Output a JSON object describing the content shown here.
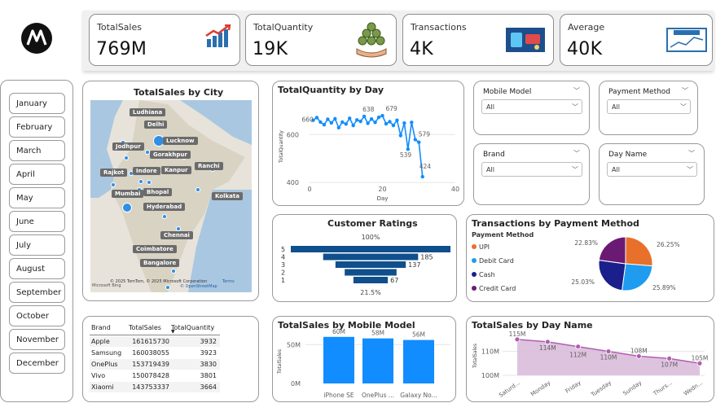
{
  "kpis": [
    {
      "label": "TotalSales",
      "value": "769M",
      "icon": "bar-chart-growth-icon"
    },
    {
      "label": "TotalQuantity",
      "value": "19K",
      "icon": "money-stack-icon"
    },
    {
      "label": "Transactions",
      "value": "4K",
      "icon": "digital-payment-icon"
    },
    {
      "label": "Average",
      "value": "40K",
      "icon": "average-board-icon"
    }
  ],
  "months": [
    "January",
    "February",
    "March",
    "April",
    "May",
    "June",
    "July",
    "August",
    "September",
    "October",
    "November",
    "December"
  ],
  "map": {
    "title": "TotalSales by City",
    "cities": [
      "Ludhiana",
      "Delhi",
      "Lucknow",
      "Jodhpur",
      "Gorakhpur",
      "Rajkot",
      "Indore",
      "Kanpur",
      "Ranchi",
      "Mumbai",
      "Bhopal",
      "Kolkata",
      "Hyderabad",
      "Chennai",
      "Coimbatore",
      "Bangalore"
    ],
    "attribution": "© 2025 TomTom, © 2025 Microsoft Corporation",
    "terms": "Terms",
    "osm": "© OpenStreetMap",
    "brand": "Microsoft Bing"
  },
  "qty_chart": {
    "title": "TotalQuantity by Day",
    "ylabel": "TotalQuantity",
    "xlabel": "Day",
    "yticks": [
      "600",
      "400"
    ],
    "xticks": [
      "0",
      "20",
      "40"
    ],
    "labels": [
      "660",
      "679",
      "638",
      "579",
      "539",
      "424"
    ]
  },
  "slicers": {
    "mobile_model": {
      "label": "Mobile Model",
      "value": "All"
    },
    "payment_method": {
      "label": "Payment Method",
      "value": "All"
    },
    "brand": {
      "label": "Brand",
      "value": "All"
    },
    "day_name": {
      "label": "Day Name",
      "value": "All"
    }
  },
  "ratings": {
    "title": "Customer Ratings",
    "top": "100%",
    "bottom": "21.5%",
    "levels": [
      "5",
      "4",
      "3",
      "2",
      "1"
    ],
    "value_labels": [
      "185",
      "137",
      "67"
    ]
  },
  "payment_chart": {
    "title": "Transactions by Payment Method",
    "legend_title": "Payment Method",
    "items": [
      {
        "name": "UPI",
        "color": "#e8702a",
        "pct": "26.25%"
      },
      {
        "name": "Debit Card",
        "color": "#1f9bf0",
        "pct": "25.89%"
      },
      {
        "name": "Cash",
        "color": "#1a1f8c",
        "pct": "25.03%"
      },
      {
        "name": "Credit Card",
        "color": "#6b1a74",
        "pct": "22.83%"
      }
    ]
  },
  "table": {
    "headers": [
      "Brand",
      "TotalSales",
      "TotalQuantity"
    ],
    "rows": [
      [
        "Apple",
        "161615730",
        "3932"
      ],
      [
        "Samsung",
        "160038055",
        "3923"
      ],
      [
        "OnePlus",
        "153719439",
        "3830"
      ],
      [
        "Vivo",
        "150078428",
        "3801"
      ],
      [
        "Xiaomi",
        "143753337",
        "3664"
      ]
    ]
  },
  "model_chart": {
    "title": "TotalSales by Mobile Model",
    "ylabel": "TotalSales",
    "yticks": [
      "50M",
      "0M"
    ],
    "labels": [
      "60M",
      "58M",
      "56M"
    ],
    "categories": [
      "iPhone SE",
      "OnePlus ...",
      "Galaxy No..."
    ]
  },
  "dayname_chart": {
    "title": "TotalSales by Day Name",
    "ylabel": "TotalSales",
    "yticks": [
      "110M",
      "100M"
    ],
    "labels": [
      "115M",
      "114M",
      "112M",
      "110M",
      "108M",
      "107M",
      "105M"
    ],
    "categories": [
      "Saturd...",
      "Monday",
      "Friday",
      "Tuesday",
      "Sunday",
      "Thurs...",
      "Wedn..."
    ]
  },
  "chart_data": [
    {
      "type": "line",
      "title": "TotalQuantity by Day",
      "xlabel": "Day",
      "ylabel": "TotalQuantity",
      "ylim": [
        380,
        720
      ],
      "xlim": [
        0,
        40
      ],
      "x": [
        1,
        2,
        3,
        4,
        5,
        6,
        7,
        8,
        9,
        10,
        11,
        12,
        13,
        14,
        15,
        16,
        17,
        18,
        19,
        20,
        21,
        22,
        23,
        24,
        25,
        26,
        27,
        28,
        29,
        30,
        31
      ],
      "values": [
        660,
        671,
        652,
        641,
        664,
        649,
        666,
        629,
        652,
        644,
        668,
        638,
        661,
        655,
        676,
        647,
        665,
        651,
        672,
        679,
        645,
        654,
        638,
        660,
        596,
        648,
        539,
        651,
        579,
        568,
        424
      ]
    },
    {
      "type": "bar",
      "title": "Customer Ratings",
      "categories": [
        "5",
        "4",
        "3",
        "2",
        "1"
      ],
      "values": [
        311,
        185,
        137,
        101,
        67
      ]
    },
    {
      "type": "pie",
      "title": "Transactions by Payment Method",
      "categories": [
        "UPI",
        "Debit Card",
        "Cash",
        "Credit Card"
      ],
      "values": [
        26.25,
        25.89,
        25.03,
        22.83
      ]
    },
    {
      "type": "bar",
      "title": "TotalSales by Mobile Model",
      "ylabel": "TotalSales",
      "categories": [
        "iPhone SE",
        "OnePlus ...",
        "Galaxy No..."
      ],
      "values": [
        60,
        58,
        56
      ],
      "ylim": [
        0,
        65
      ]
    },
    {
      "type": "area",
      "title": "TotalSales by Day Name",
      "ylabel": "TotalSales",
      "categories": [
        "Saturd...",
        "Monday",
        "Friday",
        "Tuesday",
        "Sunday",
        "Thurs...",
        "Wedn..."
      ],
      "values": [
        115,
        114,
        112,
        110,
        108,
        107,
        105
      ],
      "ylim": [
        100,
        117
      ]
    }
  ]
}
